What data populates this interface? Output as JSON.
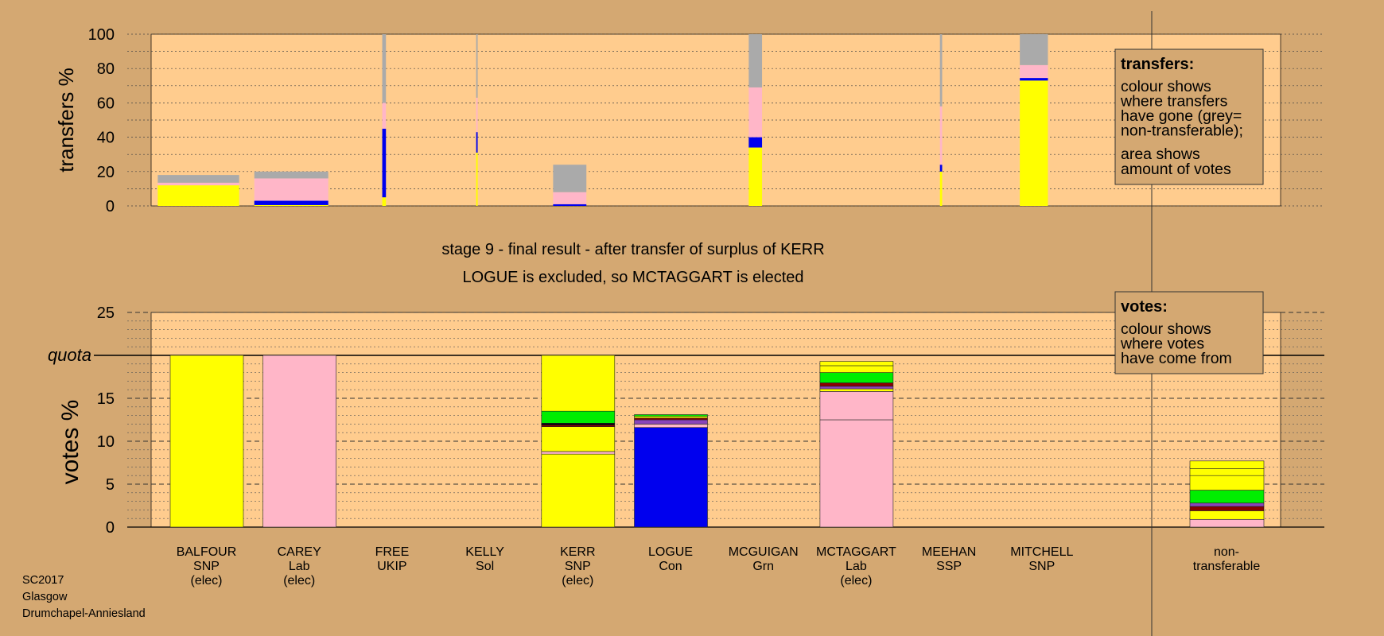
{
  "chart_data": [
    {
      "type": "bar",
      "title": "",
      "ylabel": "transfers %",
      "ylim": [
        0,
        100
      ],
      "yticks": [
        0,
        20,
        40,
        60,
        80,
        100
      ],
      "legend": {
        "placement": "top-right",
        "heading": "transfers:",
        "lines": [
          "colour shows",
          "where transfers",
          "have gone (grey=",
          "non-transferable);"
        ],
        "lines2": [
          "area shows",
          "amount of votes"
        ]
      },
      "bars": [
        {
          "source": "BALFOUR",
          "width": 1.1,
          "segments": [
            {
              "color": "#ffff00",
              "value": 12
            },
            {
              "color": "#ffb6c8",
              "value": 1.5
            },
            {
              "color": "#aaaaaa",
              "value": 4.5
            }
          ]
        },
        {
          "source": "CAREY",
          "width": 1.0,
          "segments": [
            {
              "color": "#ffff00",
              "value": 0.5
            },
            {
              "color": "#0000ee",
              "value": 2.5
            },
            {
              "color": "#ffb6c8",
              "value": 13
            },
            {
              "color": "#aaaaaa",
              "value": 4
            }
          ]
        },
        {
          "source": "FREE",
          "width": 0.05,
          "segments": [
            {
              "color": "#ffff00",
              "value": 5
            },
            {
              "color": "#0000ee",
              "value": 40
            },
            {
              "color": "#ffb6c8",
              "value": 15
            },
            {
              "color": "#aaaaaa",
              "value": 40
            }
          ]
        },
        {
          "source": "KELLY",
          "width": 0.02,
          "segments": [
            {
              "color": "#ffff00",
              "value": 31
            },
            {
              "color": "#0000ee",
              "value": 12
            },
            {
              "color": "#ffb6c8",
              "value": 20
            },
            {
              "color": "#aaaaaa",
              "value": 37
            }
          ]
        },
        {
          "source": "KERR",
          "width": 0.45,
          "segments": [
            {
              "color": "#0000ee",
              "value": 1
            },
            {
              "color": "#ffb6c8",
              "value": 7
            },
            {
              "color": "#aaaaaa",
              "value": 16
            }
          ]
        },
        {
          "source": "MCGUIGAN",
          "width": 0.18,
          "segments": [
            {
              "color": "#ffff00",
              "value": 34
            },
            {
              "color": "#0000ee",
              "value": 6
            },
            {
              "color": "#ffb6c8",
              "value": 29
            },
            {
              "color": "#aaaaaa",
              "value": 31
            }
          ]
        },
        {
          "source": "MEEHAN",
          "width": 0.03,
          "segments": [
            {
              "color": "#ffff00",
              "value": 20
            },
            {
              "color": "#0000ee",
              "value": 4
            },
            {
              "color": "#ffb6c8",
              "value": 34
            },
            {
              "color": "#aaaaaa",
              "value": 42
            }
          ]
        },
        {
          "source": "MITCHELL",
          "width": 0.38,
          "segments": [
            {
              "color": "#ffff00",
              "value": 73
            },
            {
              "color": "#0000ee",
              "value": 1.5
            },
            {
              "color": "#ffb6c8",
              "value": 7.5
            },
            {
              "color": "#aaaaaa",
              "value": 18
            }
          ]
        }
      ]
    },
    {
      "type": "bar",
      "title": "stage 9 - final result - after transfer of surplus of KERR",
      "subtitle": "LOGUE is excluded, so MCTAGGART is elected",
      "ylabel": "votes %",
      "ylim": [
        0,
        25
      ],
      "yticks": [
        0,
        5,
        10,
        15,
        20,
        25
      ],
      "quota": 20,
      "quota_label": "quota",
      "legend": {
        "placement": "top-right",
        "heading": "votes:",
        "lines": [
          "colour shows",
          "where votes",
          "have come from"
        ]
      },
      "categories": [
        {
          "name": "BALFOUR",
          "party": "SNP",
          "status": "(elec)",
          "segments": [
            {
              "color": "#ffff00",
              "value": 20
            }
          ]
        },
        {
          "name": "CAREY",
          "party": "Lab",
          "status": "(elec)",
          "segments": [
            {
              "color": "#ffb6c8",
              "value": 20
            }
          ]
        },
        {
          "name": "FREE",
          "party": "UKIP",
          "status": "",
          "segments": []
        },
        {
          "name": "KELLY",
          "party": "Sol",
          "status": "",
          "segments": []
        },
        {
          "name": "KERR",
          "party": "SNP",
          "status": "(elec)",
          "segments": [
            {
              "color": "#ffff00",
              "value": 8.5
            },
            {
              "color": "#ffb6c8",
              "value": 0.3
            },
            {
              "color": "#ffff00",
              "value": 2.9
            },
            {
              "color": "#8b0000",
              "value": 0.2
            },
            {
              "color": "#000000",
              "value": 0.2
            },
            {
              "color": "#00ee00",
              "value": 1.4
            },
            {
              "color": "#ffff00",
              "value": 6.5
            }
          ]
        },
        {
          "name": "LOGUE",
          "party": "Con",
          "status": "",
          "segments": [
            {
              "color": "#0000ee",
              "value": 11.6
            },
            {
              "color": "#ffb6c8",
              "value": 0.4
            },
            {
              "color": "#8844bb",
              "value": 0.5
            },
            {
              "color": "#8b0000",
              "value": 0.2
            },
            {
              "color": "#ffff00",
              "value": 0.2
            },
            {
              "color": "#00ee00",
              "value": 0.2
            }
          ]
        },
        {
          "name": "MCGUIGAN",
          "party": "Grn",
          "status": "",
          "segments": []
        },
        {
          "name": "MCTAGGART",
          "party": "Lab",
          "status": "(elec)",
          "segments": [
            {
              "color": "#ffb6c8",
              "value": 12.5
            },
            {
              "color": "#ffb6c8",
              "value": 3.3
            },
            {
              "color": "#ffff00",
              "value": 0.3
            },
            {
              "color": "#8844bb",
              "value": 0.3
            },
            {
              "color": "#8b0000",
              "value": 0.4
            },
            {
              "color": "#00ee00",
              "value": 1.2
            },
            {
              "color": "#ffff00",
              "value": 0.8
            },
            {
              "color": "#ffff00",
              "value": 0.5
            }
          ]
        },
        {
          "name": "MEEHAN",
          "party": "SSP",
          "status": "",
          "segments": []
        },
        {
          "name": "MITCHELL",
          "party": "SNP",
          "status": "",
          "segments": []
        }
      ],
      "nontransferable": {
        "label": [
          "non-",
          "transferable"
        ],
        "segments": [
          {
            "color": "#ffb6c8",
            "value": 0.9
          },
          {
            "color": "#ffff00",
            "value": 1.0
          },
          {
            "color": "#8b0000",
            "value": 0.5
          },
          {
            "color": "#8844bb",
            "value": 0.4
          },
          {
            "color": "#00ee00",
            "value": 1.5
          },
          {
            "color": "#ffff00",
            "value": 1.7
          },
          {
            "color": "#ffff00",
            "value": 0.8
          },
          {
            "color": "#ffff00",
            "value": 0.9
          }
        ]
      }
    }
  ],
  "footer": {
    "election": "SC2017",
    "council": "Glasgow",
    "ward": "Drumchapel-Anniesland"
  },
  "colors": {
    "background": "#d4a872",
    "plot_area": "#ffcc8e"
  }
}
